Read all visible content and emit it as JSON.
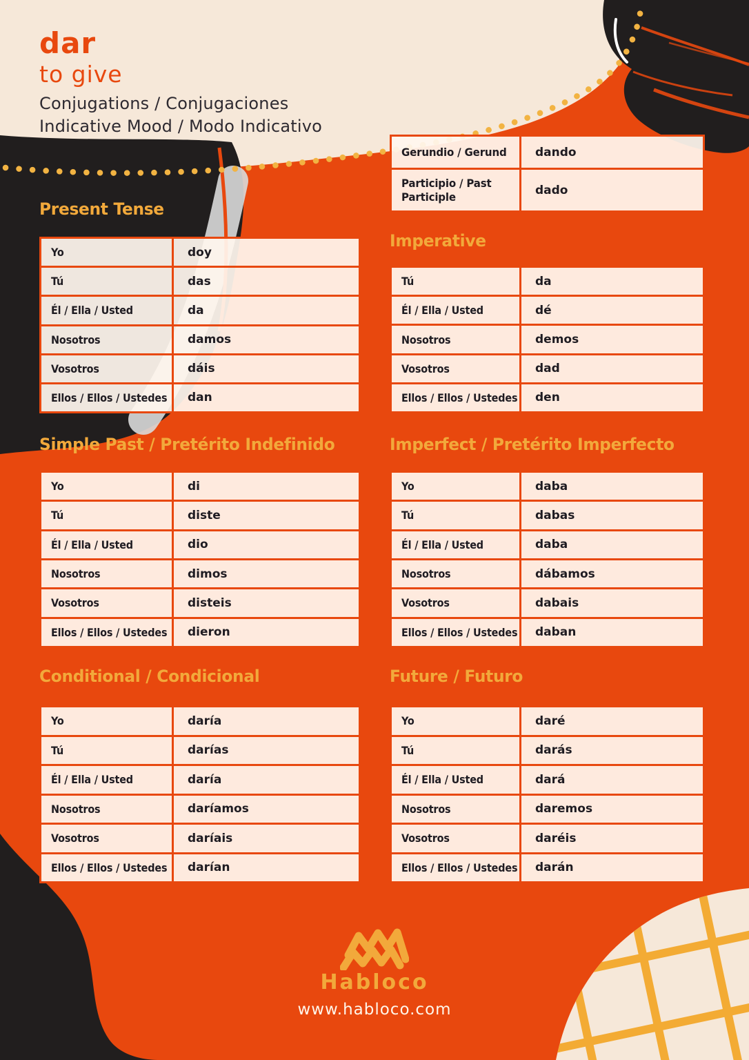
{
  "header": {
    "verb": "dar",
    "translation": "to give",
    "subtitle_line1": "Conjugations / Conjugaciones",
    "subtitle_line2": "Indicative Mood / Modo Indicativo"
  },
  "colors": {
    "background_orange": "#E8480E",
    "cream": "#F6E8D9",
    "ink_black": "#211E1E",
    "accent_gold": "#F2A93B",
    "table_cell_cream": "#FBF1E9",
    "text_dark": "#1F1C22",
    "website_white": "#FFF6EA"
  },
  "forms_table": {
    "rows": [
      {
        "label": "Gerundio / Gerund",
        "value": "dando"
      },
      {
        "label": "Participio / Past Participle",
        "value": "dado"
      }
    ]
  },
  "pronouns": [
    "Yo",
    "Tú",
    "Él / Ella / Usted",
    "Nosotros",
    "Vosotros",
    "Ellos / Ellos / Ustedes"
  ],
  "imperative_pronouns": [
    "Tú",
    "Él / Ella / Usted",
    "Nosotros",
    "Vosotros",
    "Ellos / Ellos / Ustedes"
  ],
  "sections": [
    {
      "id": "present",
      "title": "Present Tense",
      "values": [
        "doy",
        "das",
        "da",
        "damos",
        "dáis",
        "dan"
      ]
    },
    {
      "id": "imperative",
      "title": "Imperative",
      "values": [
        "da",
        "dé",
        "demos",
        "dad",
        "den"
      ]
    },
    {
      "id": "simple_past",
      "title": "Simple Past / Pretérito Indefinido",
      "values": [
        "di",
        "diste",
        "dio",
        "dimos",
        "disteis",
        "dieron"
      ]
    },
    {
      "id": "imperfect",
      "title": "Imperfect / Pretérito Imperfecto",
      "values": [
        "daba",
        "dabas",
        "daba",
        "dábamos",
        "dabais",
        "daban"
      ]
    },
    {
      "id": "conditional",
      "title": "Conditional / Condicional",
      "values": [
        "daría",
        "darías",
        "daría",
        "daríamos",
        "daríais",
        "darían"
      ]
    },
    {
      "id": "future",
      "title": "Future / Futuro",
      "values": [
        "daré",
        "darás",
        "dará",
        "daremos",
        "daréis",
        "darán"
      ]
    }
  ],
  "footer": {
    "brand": "Habloco",
    "website": "www.habloco.com",
    "logo_icon": "zigzag-waves"
  }
}
